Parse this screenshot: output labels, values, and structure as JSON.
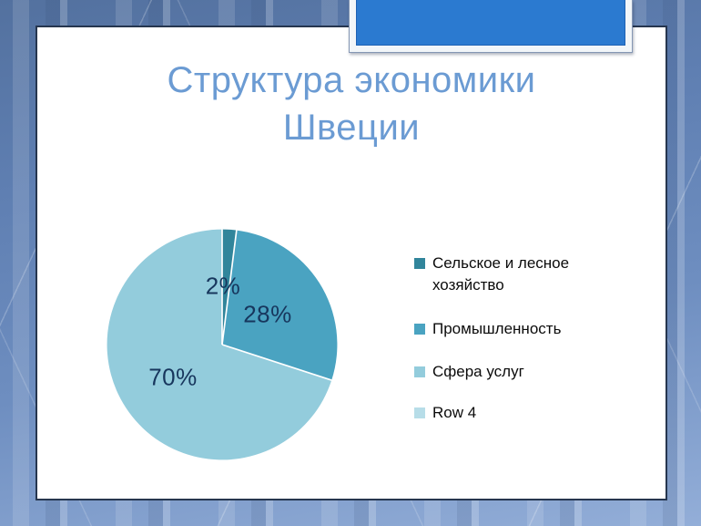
{
  "slide": {
    "title_line1": "Структура экономики",
    "title_line2": "Швеции",
    "title_color": "#6B9BD3",
    "accent_tab_color": "#2B7AD0"
  },
  "chart_data": {
    "type": "pie",
    "title": "Структура экономики Швеции",
    "categories": [
      "Сельское и лесное хозяйство",
      "Промышленность",
      "Сфера услуг",
      "Row 4"
    ],
    "values": [
      2,
      28,
      70,
      0
    ],
    "data_labels": [
      "2%",
      "28%",
      "70%"
    ],
    "slice_colors": [
      "#31859B",
      "#4AA3C1",
      "#93CCDC",
      "#B7DDE8"
    ],
    "label_color": "#17365D",
    "separator_color": "#FFFFFF",
    "legend_position": "right",
    "start_angle": "top, clockwise"
  }
}
